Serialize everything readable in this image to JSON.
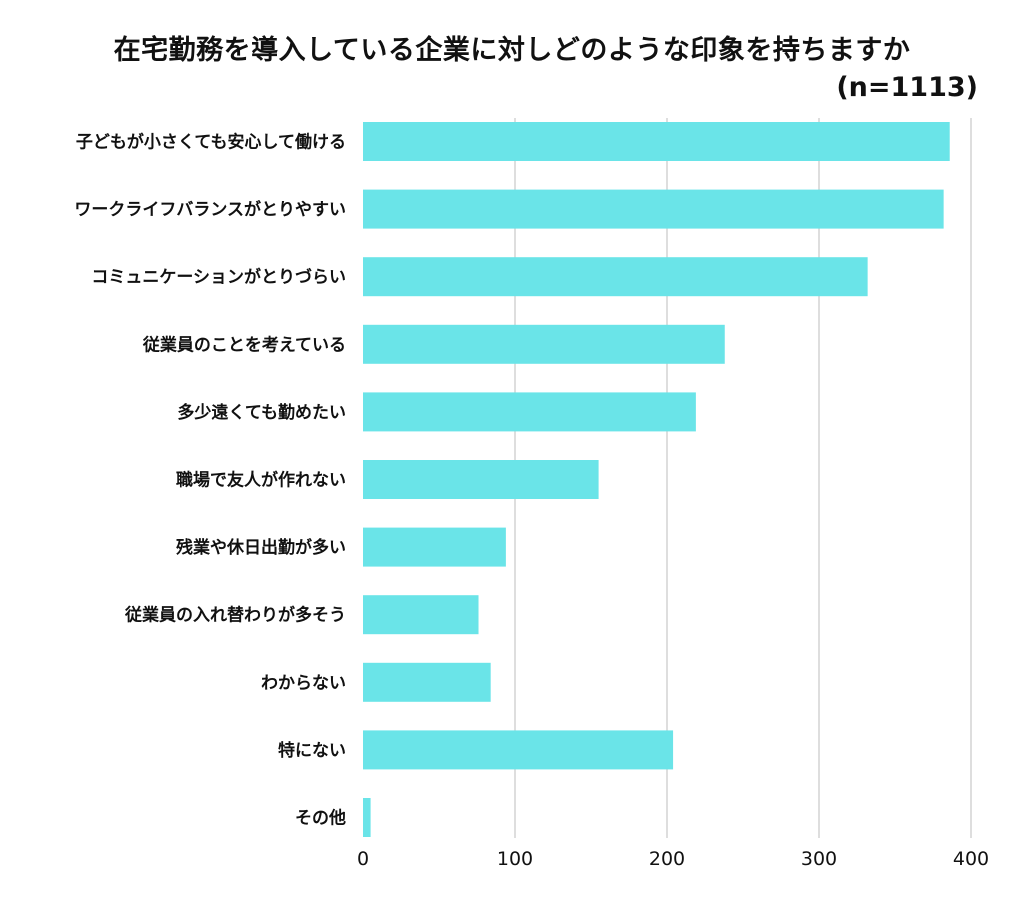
{
  "chart_data": {
    "type": "bar",
    "orientation": "horizontal",
    "title": "在宅勤務を導入している企業に対しどのような印象を持ちますか",
    "subtitle": "(n=1113)",
    "categories": [
      "子どもが小さくても安心して働ける",
      "ワークライフバランスがとりやすい",
      "コミュニケーションがとりづらい",
      "従業員のことを考えている",
      "多少遠くても勤めたい",
      "職場で友人が作れない",
      "残業や休日出勤が多い",
      "従業員の入れ替わりが多そう",
      "わからない",
      "特にない",
      "その他"
    ],
    "values": [
      386,
      382,
      332,
      238,
      219,
      155,
      94,
      76,
      84,
      204,
      5
    ],
    "xlim": [
      0,
      400
    ],
    "xticks": [
      0,
      100,
      200,
      300,
      400
    ],
    "grid": true,
    "bar_color": "#6ae4e8",
    "grid_color": "#cccccc"
  }
}
